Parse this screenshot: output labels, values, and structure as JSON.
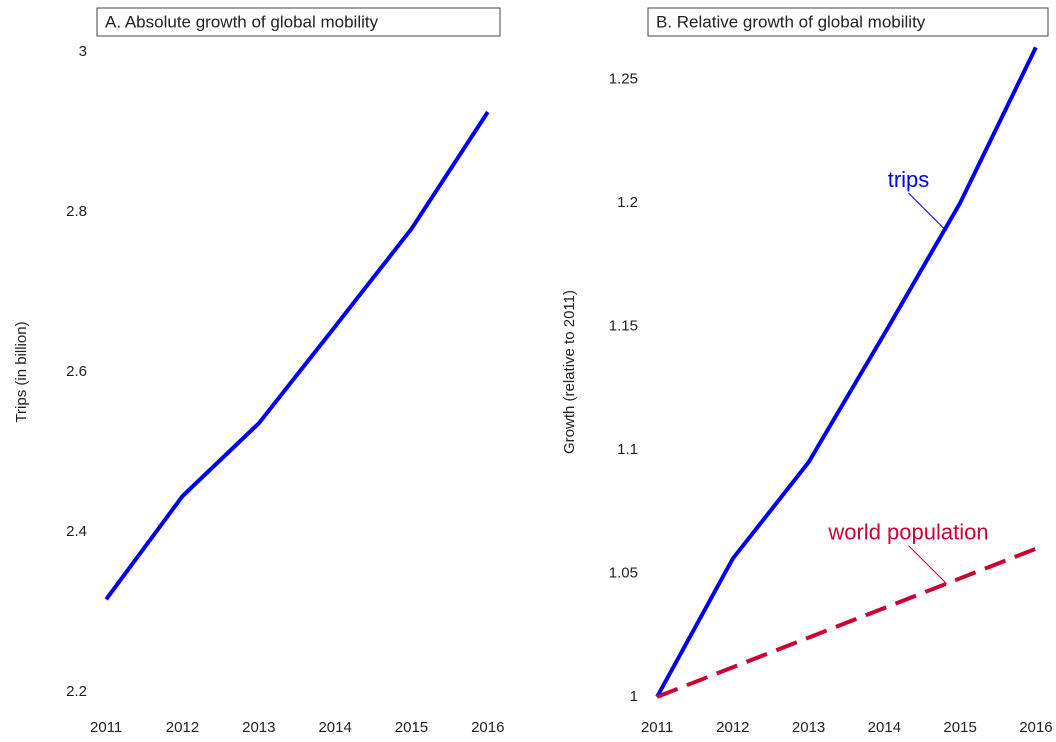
{
  "chart_data": [
    {
      "type": "line",
      "title": "A. Absolute growth of global mobility",
      "y_label": "Trips (in billion)",
      "x": [
        2011,
        2012,
        2013,
        2014,
        2015,
        2016
      ],
      "xlim": [
        2010.88,
        2016.16
      ],
      "xticks": [
        2011,
        2012,
        2013,
        2014,
        2015,
        2016
      ],
      "ylim": [
        2.184,
        3.015
      ],
      "yticks": [
        2.2,
        2.4,
        2.6,
        2.8,
        3
      ],
      "series": [
        {
          "color": "#0000ee",
          "style": "solid",
          "values": [
            2.316,
            2.445,
            2.536,
            2.657,
            2.779,
            2.925
          ]
        }
      ]
    },
    {
      "type": "line",
      "title": "B. Relative growth of global mobility",
      "y_label": "Growth (relative to 2011)",
      "x": [
        2011,
        2012,
        2013,
        2014,
        2015,
        2016
      ],
      "xlim": [
        2010.88,
        2016.16
      ],
      "xticks": [
        2011,
        2012,
        2013,
        2014,
        2015,
        2016
      ],
      "ylim": [
        0.9967,
        1.266
      ],
      "yticks": [
        1,
        1.05,
        1.1,
        1.15,
        1.2,
        1.25
      ],
      "series": [
        {
          "name": "trips",
          "color": "#0000ee",
          "style": "solid",
          "values": [
            1,
            1.056,
            1.095,
            1.147,
            1.2,
            1.263
          ]
        },
        {
          "name": "world population",
          "color": "#cc0033",
          "style": "dashed",
          "values": [
            1,
            1.012,
            1.024,
            1.036,
            1.048,
            1.06
          ]
        }
      ]
    }
  ]
}
